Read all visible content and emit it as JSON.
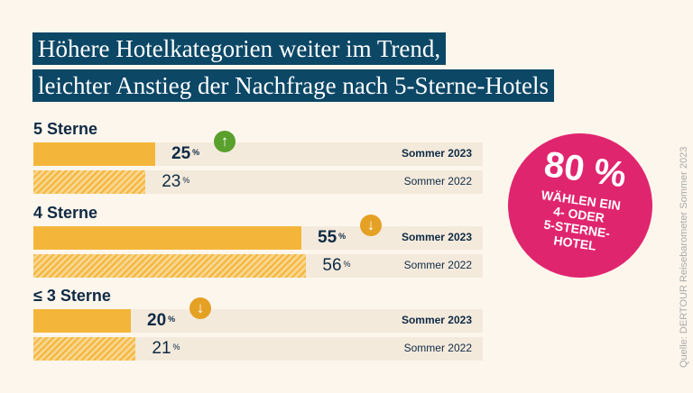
{
  "title": {
    "line1": "Höhere Hotelkategorien weiter im Trend,",
    "line2": "leichter Anstieg der Nachfrage nach 5-Sterne-Hotels"
  },
  "chart_data": {
    "type": "bar",
    "unit": "%",
    "categories": [
      "5 Sterne",
      "4 Sterne",
      "≤ 3 Sterne"
    ],
    "series": [
      {
        "name": "Sommer 2023",
        "values": [
          25,
          55,
          20
        ]
      },
      {
        "name": "Sommer 2022",
        "values": [
          23,
          56,
          21
        ]
      }
    ],
    "trend": [
      "up",
      "down",
      "down"
    ],
    "trend_colors": {
      "up": "#5aa02c",
      "down": "#e5a124"
    },
    "colors": {
      "Sommer 2023": "#f4b63a",
      "Sommer 2022": "hatched #f4b63a"
    }
  },
  "percent_sign": "%",
  "highlight": {
    "value": "80 %",
    "text": "WÄHLEN EIN\n4- ODER\n5-STERNE-\nHOTEL",
    "color": "#e0256f"
  },
  "source": "Quelle: DERTOUR Reisebarometer Sommer 2023"
}
